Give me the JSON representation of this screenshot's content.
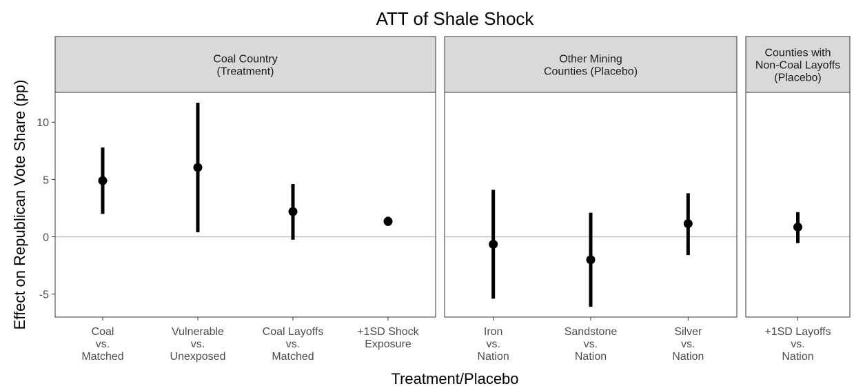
{
  "chart_data": {
    "type": "scatter",
    "title": "ATT of Shale Shock",
    "xlabel": "Treatment/Placebo",
    "ylabel": "Effect on Republican Vote Share (pp)",
    "ylim": [
      -7,
      12.6
    ],
    "yticks": [
      -5,
      0,
      5,
      10
    ],
    "grid": false,
    "reference_line": 0,
    "panels": [
      {
        "name": "Coal Country\n(Treatment)",
        "points": [
          {
            "label": "Coal\nvs.\nMatched",
            "estimate": 4.9,
            "low": 2.0,
            "high": 7.8
          },
          {
            "label": "Vulnerable\nvs.\nUnexposed",
            "estimate": 6.05,
            "low": 0.4,
            "high": 11.7
          },
          {
            "label": "Coal Layoffs\nvs.\nMatched",
            "estimate": 2.2,
            "low": -0.25,
            "high": 4.6
          },
          {
            "label": "+1SD Shock\nExposure",
            "estimate": 1.35,
            "low": 0.95,
            "high": 1.75
          }
        ]
      },
      {
        "name": "Other Mining\nCounties (Placebo)",
        "points": [
          {
            "label": "Iron\nvs.\nNation",
            "estimate": -0.65,
            "low": -5.4,
            "high": 4.1
          },
          {
            "label": "Sandstone\nvs.\nNation",
            "estimate": -2.0,
            "low": -6.1,
            "high": 2.1
          },
          {
            "label": "Silver\nvs.\nNation",
            "estimate": 1.15,
            "low": -1.6,
            "high": 3.8
          }
        ]
      },
      {
        "name": "Counties with\nNon-Coal Layoffs\n(Placebo)",
        "points": [
          {
            "label": "+1SD Layoffs\nvs.\nNation",
            "estimate": 0.85,
            "low": -0.55,
            "high": 2.15
          }
        ]
      }
    ]
  }
}
